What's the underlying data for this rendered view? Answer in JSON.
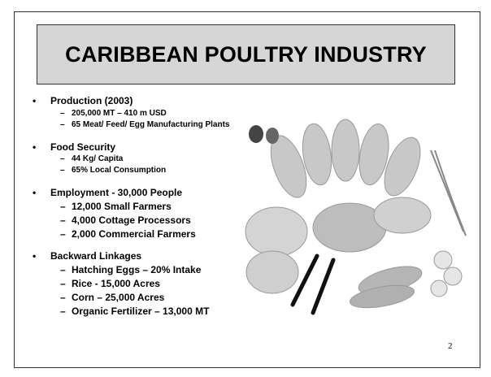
{
  "slide": {
    "title": "CARIBBEAN POULTRY INDUSTRY",
    "bullets": [
      {
        "text": "Production (2003)",
        "items": [
          "205,000 MT – 410 m USD",
          "65 Meat/ Feed/ Egg Manufacturing Plants"
        ]
      },
      {
        "text": "Food Security",
        "items": [
          "44 Kg/ Capita",
          "65% Local Consumption"
        ]
      },
      {
        "text": "Employment - 30,000 People",
        "items": [
          "12,000 Small Farmers",
          "4,000 Cottage Processors",
          "2,000 Commercial Farmers"
        ]
      },
      {
        "text": "Backward Linkages",
        "items": [
          "Hatching Eggs – 20% Intake",
          "Rice - 15,000 Acres",
          "Corn – 25,000 Acres",
          "Organic Fertilizer – 13,000 MT"
        ]
      }
    ],
    "page_number": "2"
  }
}
